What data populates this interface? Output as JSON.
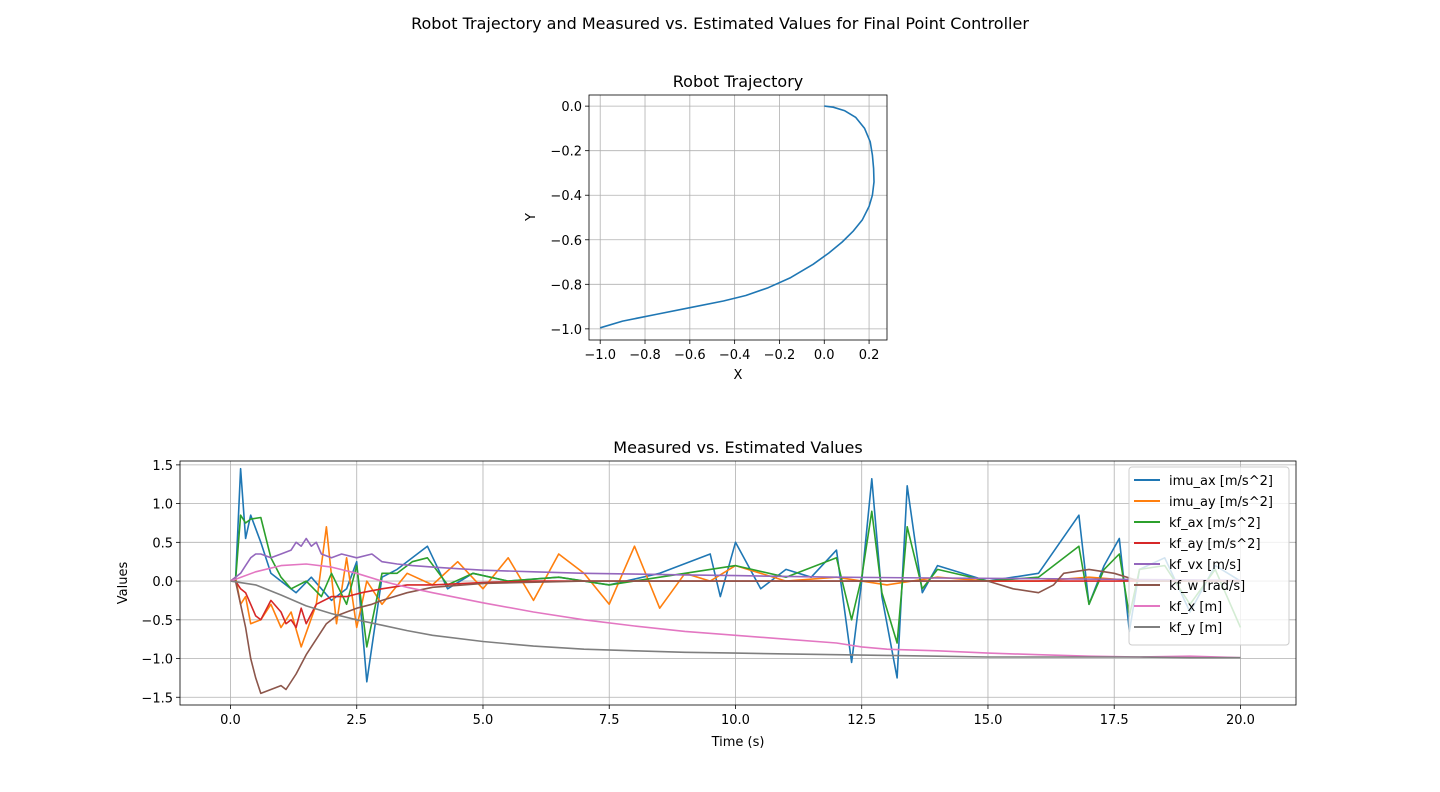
{
  "figure": {
    "suptitle": "Robot Trajectory and Measured vs. Estimated Values for Final Point Controller"
  },
  "chart_data": [
    {
      "type": "line",
      "title": "Robot Trajectory",
      "xlabel": "X",
      "ylabel": "Y",
      "xlim": [
        -1.05,
        0.28
      ],
      "ylim": [
        -1.05,
        0.05
      ],
      "xticks": [
        -1.0,
        -0.8,
        -0.6,
        -0.4,
        -0.2,
        0.0,
        0.2
      ],
      "xtick_labels": [
        "−1.0",
        "−0.8",
        "−0.6",
        "−0.4",
        "−0.2",
        "0.0",
        "0.2"
      ],
      "yticks": [
        0.0,
        -0.2,
        -0.4,
        -0.6,
        -0.8,
        -1.0
      ],
      "ytick_labels": [
        "0.0",
        "−0.2",
        "−0.4",
        "−0.6",
        "−0.8",
        "−1.0"
      ],
      "grid": true,
      "series": [
        {
          "color": "#1f77b4",
          "x": [
            0.0,
            0.04,
            0.09,
            0.14,
            0.18,
            0.205,
            0.215,
            0.22,
            0.222,
            0.215,
            0.2,
            0.17,
            0.13,
            0.08,
            0.02,
            -0.05,
            -0.15,
            -0.25,
            -0.35,
            -0.45,
            -0.6,
            -0.75,
            -0.9,
            -1.0
          ],
          "y": [
            0.0,
            -0.005,
            -0.02,
            -0.05,
            -0.1,
            -0.16,
            -0.22,
            -0.28,
            -0.34,
            -0.4,
            -0.45,
            -0.51,
            -0.56,
            -0.61,
            -0.66,
            -0.71,
            -0.77,
            -0.815,
            -0.85,
            -0.875,
            -0.905,
            -0.935,
            -0.965,
            -0.995
          ]
        }
      ]
    },
    {
      "type": "line",
      "title": "Measured vs. Estimated Values",
      "xlabel": "Time (s)",
      "ylabel": "Values",
      "xlim": [
        -1.0,
        21.1
      ],
      "ylim": [
        -1.6,
        1.55
      ],
      "xticks": [
        0.0,
        2.5,
        5.0,
        7.5,
        10.0,
        12.5,
        15.0,
        17.5,
        20.0
      ],
      "xtick_labels": [
        "0.0",
        "2.5",
        "5.0",
        "7.5",
        "10.0",
        "12.5",
        "15.0",
        "17.5",
        "20.0"
      ],
      "yticks": [
        1.5,
        1.0,
        0.5,
        0.0,
        -0.5,
        -1.0,
        -1.5
      ],
      "ytick_labels": [
        "1.5",
        "1.0",
        "0.5",
        "0.0",
        "−0.5",
        "−1.0",
        "−1.5"
      ],
      "grid": true,
      "legend_position": "upper right",
      "series": [
        {
          "name": "imu_ax [m/s^2]",
          "color": "#1f77b4",
          "x": [
            0.0,
            0.1,
            0.2,
            0.3,
            0.4,
            0.6,
            0.8,
            1.0,
            1.3,
            1.6,
            2.0,
            2.3,
            2.5,
            2.7,
            3.0,
            3.3,
            3.6,
            3.9,
            4.3,
            4.8,
            5.5,
            6.5,
            7.5,
            8.5,
            9.5,
            9.7,
            10.0,
            10.5,
            11.0,
            11.5,
            12.0,
            12.3,
            12.5,
            12.7,
            12.9,
            13.2,
            13.4,
            13.7,
            14.0,
            15.0,
            16.0,
            16.8,
            17.0,
            17.3,
            17.6,
            17.8,
            18.0,
            18.5,
            19.0,
            19.5,
            20.0
          ],
          "y": [
            0.0,
            0.0,
            1.45,
            0.55,
            0.85,
            0.5,
            0.1,
            0.0,
            -0.15,
            0.05,
            -0.25,
            -0.1,
            0.25,
            -1.3,
            0.05,
            0.15,
            0.3,
            0.45,
            -0.1,
            0.1,
            0.0,
            0.05,
            -0.05,
            0.1,
            0.35,
            -0.2,
            0.5,
            -0.1,
            0.15,
            0.05,
            0.4,
            -1.05,
            0.0,
            1.32,
            -0.2,
            -1.25,
            1.23,
            -0.15,
            0.2,
            0.0,
            0.1,
            0.85,
            -0.3,
            0.2,
            0.55,
            -0.65,
            0.15,
            0.3,
            -0.4,
            0.2,
            0.0
          ]
        },
        {
          "name": "imu_ay [m/s^2]",
          "color": "#ff7f0e",
          "x": [
            0.0,
            0.1,
            0.2,
            0.3,
            0.4,
            0.6,
            0.8,
            1.0,
            1.2,
            1.4,
            1.7,
            1.9,
            2.1,
            2.3,
            2.5,
            2.7,
            3.0,
            3.5,
            4.0,
            4.5,
            5.0,
            5.5,
            6.0,
            6.5,
            7.0,
            7.5,
            8.0,
            8.5,
            9.0,
            9.5,
            10.0,
            10.5,
            11.0,
            12.0,
            13.0,
            14.0,
            15.0,
            16.0,
            17.0,
            18.0,
            19.0,
            20.0
          ],
          "y": [
            0.0,
            0.05,
            -0.3,
            -0.2,
            -0.55,
            -0.5,
            -0.3,
            -0.6,
            -0.4,
            -0.85,
            -0.3,
            0.7,
            -0.55,
            0.3,
            -0.6,
            0.0,
            -0.3,
            0.1,
            -0.05,
            0.25,
            -0.1,
            0.3,
            -0.25,
            0.35,
            0.1,
            -0.3,
            0.45,
            -0.35,
            0.1,
            0.0,
            0.2,
            0.1,
            0.0,
            0.05,
            -0.05,
            0.05,
            0.0,
            0.0,
            0.05,
            0.0,
            0.0,
            0.0
          ]
        },
        {
          "name": "kf_ax [m/s^2]",
          "color": "#2ca02c",
          "x": [
            0.0,
            0.1,
            0.2,
            0.3,
            0.4,
            0.6,
            0.8,
            1.0,
            1.2,
            1.5,
            1.8,
            2.0,
            2.3,
            2.5,
            2.7,
            3.0,
            3.3,
            3.6,
            3.9,
            4.3,
            4.8,
            5.5,
            6.5,
            7.5,
            8.5,
            9.5,
            10.0,
            11.0,
            12.0,
            12.3,
            12.5,
            12.7,
            12.9,
            13.2,
            13.4,
            13.7,
            14.0,
            15.0,
            16.0,
            16.8,
            17.0,
            17.3,
            17.6,
            17.8,
            18.0,
            18.5,
            19.0,
            19.5,
            20.0
          ],
          "y": [
            0.0,
            0.0,
            0.85,
            0.75,
            0.8,
            0.82,
            0.3,
            0.05,
            -0.1,
            0.0,
            -0.2,
            0.1,
            -0.3,
            0.2,
            -0.85,
            0.1,
            0.1,
            0.25,
            0.3,
            -0.05,
            0.1,
            0.0,
            0.05,
            -0.05,
            0.05,
            0.15,
            0.2,
            0.05,
            0.3,
            -0.5,
            0.05,
            0.9,
            -0.15,
            -0.8,
            0.7,
            -0.1,
            0.15,
            0.0,
            0.05,
            0.45,
            -0.3,
            0.15,
            0.35,
            -0.45,
            0.15,
            0.2,
            -0.3,
            0.15,
            -0.6
          ]
        },
        {
          "name": "kf_ay [m/s^2]",
          "color": "#d62728",
          "x": [
            0.0,
            0.1,
            0.2,
            0.3,
            0.4,
            0.5,
            0.6,
            0.8,
            1.0,
            1.1,
            1.2,
            1.3,
            1.4,
            1.5,
            1.7,
            2.0,
            2.3,
            2.6,
            3.0,
            3.5,
            4.0,
            5.0,
            6.0,
            7.0,
            8.0,
            10.0,
            12.0,
            14.0,
            16.0,
            18.0,
            20.0
          ],
          "y": [
            0.0,
            0.0,
            -0.1,
            -0.15,
            -0.3,
            -0.45,
            -0.5,
            -0.25,
            -0.4,
            -0.55,
            -0.5,
            -0.6,
            -0.35,
            -0.55,
            -0.3,
            -0.2,
            -0.2,
            -0.15,
            -0.1,
            -0.05,
            -0.05,
            -0.02,
            0.0,
            0.0,
            0.0,
            0.0,
            0.0,
            0.0,
            0.0,
            0.0,
            0.0
          ]
        },
        {
          "name": "kf_vx [m/s]",
          "color": "#9467bd",
          "x": [
            0.0,
            0.2,
            0.3,
            0.4,
            0.5,
            0.6,
            0.8,
            1.0,
            1.2,
            1.3,
            1.4,
            1.5,
            1.6,
            1.7,
            1.8,
            2.0,
            2.2,
            2.5,
            2.8,
            3.0,
            3.3,
            3.6,
            4.0,
            4.5,
            5.0,
            6.0,
            7.0,
            8.0,
            9.0,
            10.0,
            12.0,
            14.0,
            16.0,
            18.0,
            20.0
          ],
          "y": [
            0.0,
            0.1,
            0.2,
            0.3,
            0.35,
            0.35,
            0.3,
            0.35,
            0.4,
            0.5,
            0.45,
            0.55,
            0.45,
            0.5,
            0.35,
            0.3,
            0.35,
            0.3,
            0.35,
            0.25,
            0.22,
            0.2,
            0.18,
            0.16,
            0.14,
            0.12,
            0.1,
            0.09,
            0.08,
            0.07,
            0.05,
            0.04,
            0.03,
            0.02,
            0.01
          ]
        },
        {
          "name": "kf_w [rad/s]",
          "color": "#8c564b",
          "x": [
            0.0,
            0.1,
            0.2,
            0.3,
            0.4,
            0.5,
            0.6,
            0.8,
            1.0,
            1.1,
            1.3,
            1.5,
            1.7,
            1.9,
            2.1,
            2.3,
            2.5,
            2.8,
            3.0,
            3.5,
            4.0,
            5.0,
            7.0,
            10.0,
            13.0,
            15.0,
            15.5,
            16.0,
            16.3,
            16.5,
            17.0,
            17.5,
            18.0,
            19.0,
            20.0
          ],
          "y": [
            0.0,
            0.0,
            -0.3,
            -0.6,
            -1.0,
            -1.25,
            -1.45,
            -1.4,
            -1.35,
            -1.4,
            -1.2,
            -0.95,
            -0.75,
            -0.55,
            -0.45,
            -0.4,
            -0.35,
            -0.3,
            -0.25,
            -0.15,
            -0.08,
            -0.03,
            0.0,
            0.0,
            0.0,
            0.0,
            -0.1,
            -0.15,
            -0.05,
            0.1,
            0.15,
            0.1,
            0.0,
            0.0,
            0.0
          ]
        },
        {
          "name": "kf_x [m]",
          "color": "#e377c2",
          "x": [
            0.0,
            0.5,
            1.0,
            1.5,
            2.0,
            2.5,
            3.0,
            3.5,
            4.0,
            5.0,
            6.0,
            7.0,
            8.0,
            9.0,
            10.0,
            11.0,
            12.0,
            12.5,
            13.0,
            14.0,
            15.0,
            16.0,
            17.0,
            18.0,
            19.0,
            20.0
          ],
          "y": [
            0.0,
            0.12,
            0.2,
            0.22,
            0.18,
            0.1,
            0.0,
            -0.08,
            -0.15,
            -0.28,
            -0.4,
            -0.5,
            -0.58,
            -0.65,
            -0.7,
            -0.75,
            -0.8,
            -0.85,
            -0.88,
            -0.9,
            -0.93,
            -0.95,
            -0.97,
            -0.98,
            -0.97,
            -0.99
          ]
        },
        {
          "name": "kf_y [m]",
          "color": "#7f7f7f",
          "x": [
            0.0,
            0.5,
            1.0,
            1.5,
            2.0,
            2.5,
            3.0,
            3.5,
            4.0,
            5.0,
            6.0,
            7.0,
            8.0,
            9.0,
            10.0,
            11.0,
            12.0,
            13.0,
            14.0,
            15.0,
            16.0,
            17.0,
            18.0,
            19.0,
            20.0
          ],
          "y": [
            0.0,
            -0.05,
            -0.18,
            -0.32,
            -0.42,
            -0.5,
            -0.57,
            -0.64,
            -0.7,
            -0.78,
            -0.84,
            -0.88,
            -0.9,
            -0.92,
            -0.93,
            -0.94,
            -0.95,
            -0.96,
            -0.97,
            -0.98,
            -0.98,
            -0.98,
            -0.98,
            -0.99,
            -0.99
          ]
        }
      ]
    }
  ]
}
